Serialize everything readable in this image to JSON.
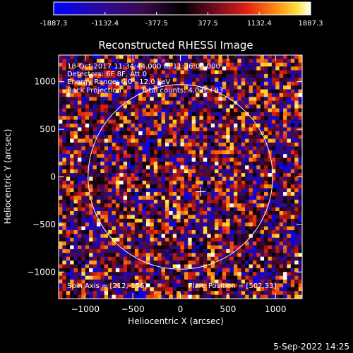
{
  "colorbar": {
    "ticks": [
      "-1887.3",
      "-1132.4",
      "-377.5",
      "377.5",
      "1132.4",
      "1887.3"
    ],
    "min": -1887.3,
    "max": 1887.3
  },
  "footer_timestamp": "5-Sep-2022 14:25",
  "chart_data": {
    "type": "heatmap",
    "title": "Reconstructed RHESSI Image",
    "xlabel": "Heliocentric X (arcsec)",
    "ylabel": "Heliocentric Y (arcsec)",
    "xlim": [
      -1280,
      1280
    ],
    "ylim": [
      -1280,
      1280
    ],
    "xticks": [
      -1000,
      -500,
      0,
      500,
      1000
    ],
    "xtick_labels": [
      "−1000",
      "−500",
      "0",
      "500",
      "1000"
    ],
    "yticks": [
      -1000,
      -500,
      0,
      500,
      1000
    ],
    "ytick_labels": [
      "−1000",
      "−500",
      "0",
      "500",
      "1000"
    ],
    "annotations": [
      "18-Oct-2017 11:34:44.000 to 11:36:08.000",
      "Detectors: 6F 8F, Att 0",
      "Energy Range: 6.0 - 12.0 keV",
      "Back Projection",
      "Total counts: 4.07E+03"
    ],
    "spin_axis_label": "Spin Axis = [212,-156]",
    "flare_position_label": "Flare Position = [502,33]",
    "limb_radius_arcsec": 970,
    "sun_center": [
      0,
      0
    ],
    "marker": [
      212,
      -156
    ],
    "colormap": "blue-purple-red-yellow-white"
  }
}
